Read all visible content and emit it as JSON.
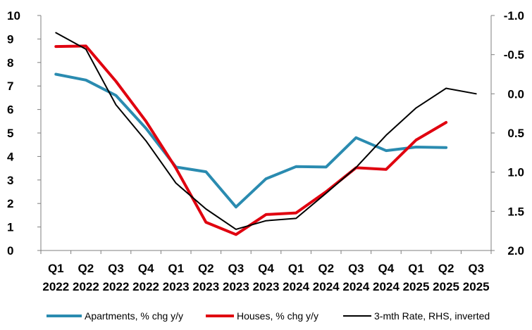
{
  "chart_data": {
    "type": "line",
    "title": "",
    "categories": [
      [
        "Q1",
        "2022"
      ],
      [
        "Q2",
        "2022"
      ],
      [
        "Q3",
        "2022"
      ],
      [
        "Q4",
        "2022"
      ],
      [
        "Q1",
        "2023"
      ],
      [
        "Q2",
        "2023"
      ],
      [
        "Q3",
        "2023"
      ],
      [
        "Q4",
        "2023"
      ],
      [
        "Q1",
        "2024"
      ],
      [
        "Q2",
        "2024"
      ],
      [
        "Q3",
        "2024"
      ],
      [
        "Q4",
        "2024"
      ],
      [
        "Q1",
        "2025"
      ],
      [
        "Q2",
        "2025"
      ],
      [
        "Q3",
        "2025"
      ]
    ],
    "left_axis": {
      "ylim": [
        0,
        10
      ],
      "ticks": [
        "0",
        "1",
        "2",
        "3",
        "4",
        "5",
        "6",
        "7",
        "8",
        "9",
        "10"
      ]
    },
    "right_axis": {
      "ylim": [
        2.0,
        -1.0
      ],
      "inverted": true,
      "ticks": [
        "2.0",
        "1.5",
        "1.0",
        "0.5",
        "0.0",
        "-0.5",
        "-1.0"
      ]
    },
    "series": [
      {
        "name": "Apartments, % chg y/y",
        "axis": "left",
        "color": "#2a8bb0",
        "values": [
          7.5,
          7.25,
          6.6,
          5.2,
          3.55,
          3.35,
          1.85,
          3.05,
          3.57,
          3.55,
          4.8,
          4.25,
          4.4,
          4.38,
          null
        ]
      },
      {
        "name": "Houses, % chg y/y",
        "axis": "left",
        "color": "#e0000f",
        "values": [
          8.68,
          8.7,
          7.2,
          5.5,
          3.5,
          1.2,
          0.68,
          1.53,
          1.6,
          2.5,
          3.52,
          3.45,
          4.7,
          5.45,
          null
        ]
      },
      {
        "name": "3-mth Rate, RHS, inverted",
        "axis": "right",
        "color": "#000000",
        "values": [
          -0.78,
          -0.57,
          0.14,
          0.6,
          1.14,
          1.47,
          1.73,
          1.62,
          1.59,
          1.27,
          0.94,
          0.53,
          0.18,
          -0.07,
          0.0
        ]
      }
    ]
  }
}
